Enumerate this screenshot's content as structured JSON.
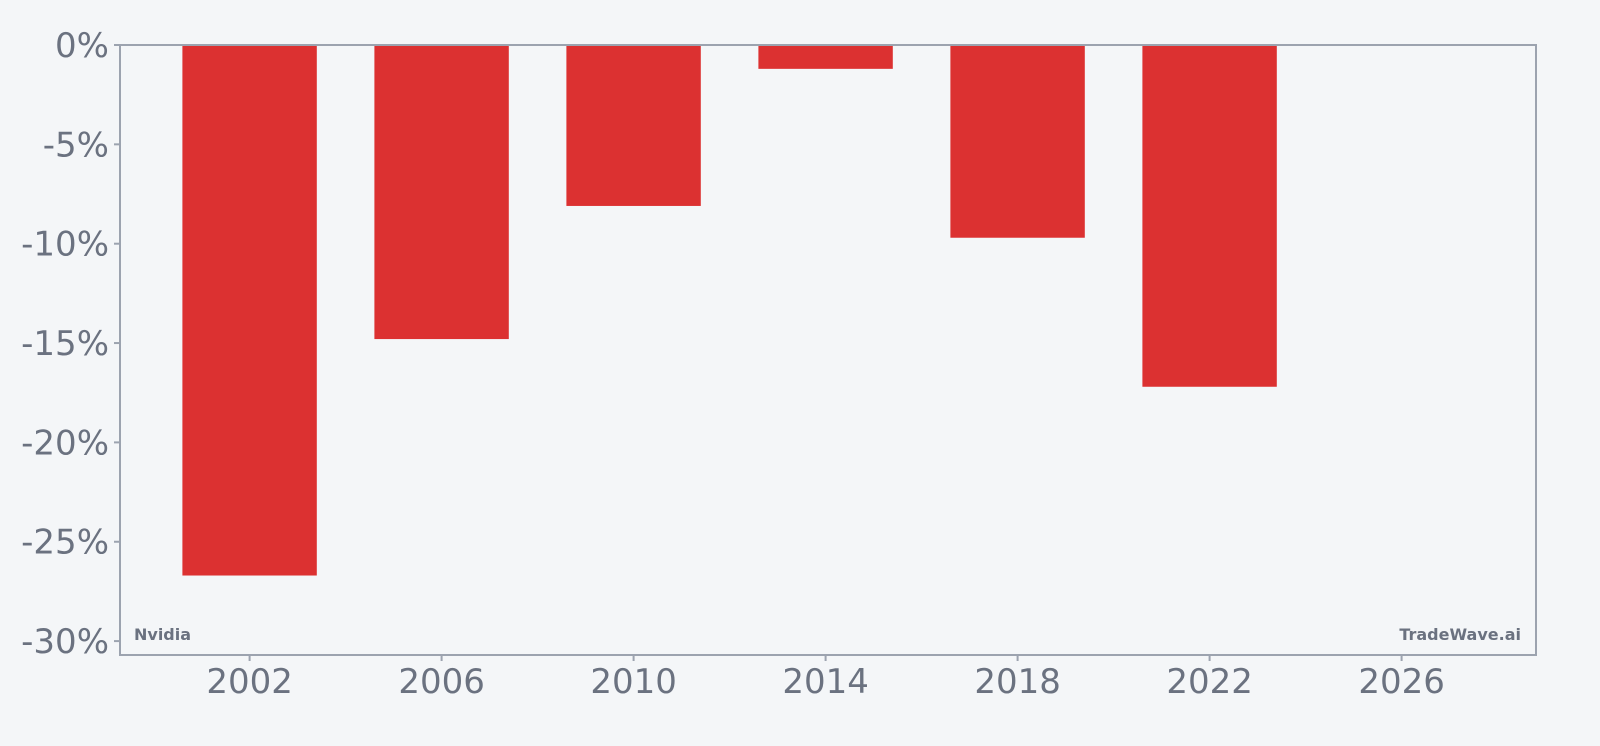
{
  "chart_data": {
    "type": "bar",
    "x": [
      2002,
      2006,
      2010,
      2014,
      2018,
      2022
    ],
    "values": [
      -26.7,
      -14.8,
      -8.1,
      -1.2,
      -9.7,
      -17.2
    ],
    "xlim": [
      1999.3,
      2028.8
    ],
    "ylim": [
      -30.7,
      0
    ],
    "xticks": [
      "2002",
      "2006",
      "2010",
      "2014",
      "2018",
      "2022",
      "2026"
    ],
    "xtick_values": [
      2002,
      2006,
      2010,
      2014,
      2018,
      2022,
      2026
    ],
    "yticks": [
      "0%",
      "-5%",
      "-10%",
      "-15%",
      "-20%",
      "-25%",
      "-30%"
    ],
    "ytick_values": [
      0,
      -5,
      -10,
      -15,
      -20,
      -25,
      -30
    ],
    "bar_width_years": 2.8,
    "grid": false,
    "title": "",
    "xlabel": "",
    "ylabel": ""
  },
  "annotations": {
    "left": "Nvidia",
    "right": "TradeWave.ai"
  },
  "colors": {
    "bar": "#dc3131",
    "axis": "#9ca3af",
    "text": "#6b7280",
    "background": "#f4f6f8"
  }
}
